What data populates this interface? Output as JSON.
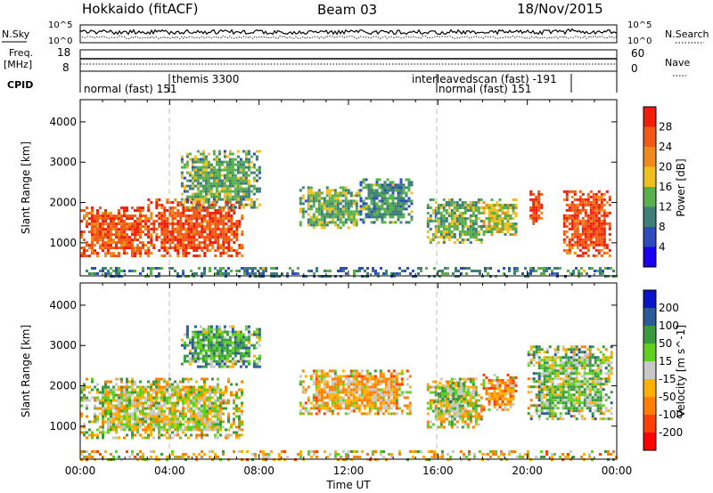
{
  "header": {
    "station": "Hokkaido (fitACF)",
    "beam": "Beam 03",
    "date": "18/Nov/2015"
  },
  "top_panels": {
    "nsky_label": "N.Sky",
    "nsky_ticks": [
      "10^5",
      "10^0"
    ],
    "nsky_right_ticks": [
      "10^5",
      "10^0"
    ],
    "nsearch_label": "N.Search",
    "freq_label": "Freq.",
    "freq_unit": "[MHz]",
    "freq_ticks": [
      "18",
      "8"
    ],
    "nave_ticks": [
      "60",
      "0"
    ],
    "nave_label": "Nave",
    "cpid_label": "CPID",
    "cpid_segments": [
      {
        "label": "normal (fast) 151",
        "start_hour": 0,
        "end_hour": 4
      },
      {
        "label": "themis 3300",
        "start_hour": 4,
        "end_hour": 16
      },
      {
        "label": "interleavedscan (fast) -191",
        "start_hour": 16,
        "end_hour": 21.5
      },
      {
        "label": "normal (fast) 151",
        "start_hour": 16,
        "end_hour": 24
      }
    ]
  },
  "chart_data": [
    {
      "type": "heatmap",
      "name": "Power",
      "ylabel": "Slant Range [km]",
      "ylim": [
        180,
        4550
      ],
      "yticks": [
        1000,
        2000,
        3000,
        4000
      ],
      "xlim": [
        0,
        24
      ],
      "colorbar": {
        "label": "Power [dB]",
        "ticks": [
          "28",
          "24",
          "20",
          "16",
          "12",
          "8",
          "4"
        ],
        "bins_low_to_high": [
          {
            "range": [
              0,
              4
            ],
            "color": "#1a00f0"
          },
          {
            "range": [
              4,
              8
            ],
            "color": "#2e4dbb"
          },
          {
            "range": [
              8,
              12
            ],
            "color": "#3f7f7a"
          },
          {
            "range": [
              12,
              16
            ],
            "color": "#59b04a"
          },
          {
            "range": [
              16,
              20
            ],
            "color": "#f0c020"
          },
          {
            "range": [
              20,
              24
            ],
            "color": "#f08a1a"
          },
          {
            "range": [
              24,
              28
            ],
            "color": "#f05a14"
          },
          {
            "range": [
              28,
              32
            ],
            "color": "#f01e0a"
          }
        ]
      },
      "regions": [
        {
          "t": [
            0.0,
            3.0
          ],
          "r": [
            700,
            1900
          ],
          "value": 26
        },
        {
          "t": [
            3.0,
            7.2
          ],
          "r": [
            700,
            2100
          ],
          "value": 27
        },
        {
          "t": [
            4.5,
            8.0
          ],
          "r": [
            1900,
            3300
          ],
          "value": 13
        },
        {
          "t": [
            9.8,
            12.5
          ],
          "r": [
            1350,
            2400
          ],
          "value": 14
        },
        {
          "t": [
            12.5,
            14.8
          ],
          "r": [
            1500,
            2600
          ],
          "value": 11
        },
        {
          "t": [
            15.5,
            18.0
          ],
          "r": [
            1000,
            2100
          ],
          "value": 14
        },
        {
          "t": [
            18.0,
            19.5
          ],
          "r": [
            1200,
            2100
          ],
          "value": 17
        },
        {
          "t": [
            20.1,
            20.6
          ],
          "r": [
            1500,
            2300
          ],
          "value": 27
        },
        {
          "t": [
            21.6,
            23.7
          ],
          "r": [
            700,
            2300
          ],
          "value": 27
        },
        {
          "t": [
            0.0,
            24.0
          ],
          "r": [
            180,
            400
          ],
          "value": 10
        }
      ]
    },
    {
      "type": "heatmap",
      "name": "Velocity",
      "ylabel": "Slant Range [km]",
      "ylim": [
        180,
        4550
      ],
      "yticks": [
        1000,
        2000,
        3000,
        4000
      ],
      "xlim": [
        0,
        24
      ],
      "xticks": [
        "00:00",
        "04:00",
        "08:00",
        "12:00",
        "16:00",
        "20:00",
        "00:00"
      ],
      "xlabel": "Time UT",
      "colorbar": {
        "label": "Velocity [m s^-1]",
        "ticks": [
          "200",
          "100",
          "50",
          "15",
          "-15",
          "-50",
          "-100",
          "-200"
        ],
        "bins_low_to_high": [
          {
            "range": [
              -250,
              -200
            ],
            "color": "#ff0000"
          },
          {
            "range": [
              -200,
              -100
            ],
            "color": "#ff4000"
          },
          {
            "range": [
              -100,
              -50
            ],
            "color": "#ff8000"
          },
          {
            "range": [
              -50,
              -15
            ],
            "color": "#ffb000"
          },
          {
            "range": [
              -15,
              15
            ],
            "color": "#c8c8c8"
          },
          {
            "range": [
              15,
              50
            ],
            "color": "#60d020"
          },
          {
            "range": [
              50,
              100
            ],
            "color": "#3a9a40"
          },
          {
            "range": [
              100,
              200
            ],
            "color": "#2a5a98"
          },
          {
            "range": [
              200,
              250
            ],
            "color": "#0a14c8"
          }
        ]
      },
      "regions": [
        {
          "t": [
            0.0,
            7.2
          ],
          "r": [
            700,
            2200
          ],
          "value": 0
        },
        {
          "t": [
            4.5,
            8.0
          ],
          "r": [
            2500,
            3500
          ],
          "value": 60
        },
        {
          "t": [
            9.8,
            14.8
          ],
          "r": [
            1300,
            2400
          ],
          "value": -35
        },
        {
          "t": [
            15.5,
            18.0
          ],
          "r": [
            1000,
            2200
          ],
          "value": 0
        },
        {
          "t": [
            15.8,
            17.3
          ],
          "r": [
            1600,
            2100
          ],
          "value": 30
        },
        {
          "t": [
            18.0,
            19.5
          ],
          "r": [
            1400,
            2300
          ],
          "value": -60
        },
        {
          "t": [
            20.0,
            23.8
          ],
          "r": [
            1200,
            3000
          ],
          "value": 30
        },
        {
          "t": [
            0.0,
            24.0
          ],
          "r": [
            180,
            400
          ],
          "value": -20
        }
      ]
    }
  ]
}
